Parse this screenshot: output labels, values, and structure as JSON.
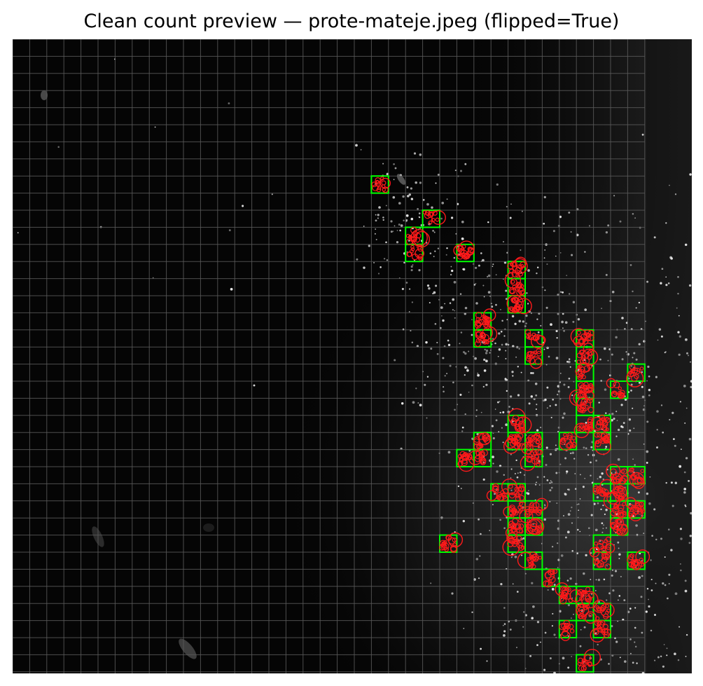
{
  "figure": {
    "title": "Clean count preview — prote-mateje.jpeg (flipped=True)",
    "colors": {
      "grid_line": "#5a5a5a",
      "cell_highlight": "#00ff00",
      "detection_circle": "#ff1a1a",
      "speckle": "#e8e8e8",
      "background": "#000000"
    },
    "grid": {
      "columns": 37,
      "rows": 37
    },
    "highlighted_cells": [
      [
        21,
        8
      ],
      [
        24,
        10
      ],
      [
        23,
        11
      ],
      [
        23,
        12
      ],
      [
        26,
        12
      ],
      [
        29,
        13
      ],
      [
        29,
        14
      ],
      [
        29,
        15
      ],
      [
        27,
        16
      ],
      [
        27,
        17
      ],
      [
        30,
        17
      ],
      [
        30,
        18
      ],
      [
        33,
        17
      ],
      [
        33,
        18
      ],
      [
        33,
        19
      ],
      [
        33,
        20
      ],
      [
        36,
        19
      ],
      [
        35,
        20
      ],
      [
        33,
        21
      ],
      [
        33,
        22
      ],
      [
        34,
        22
      ],
      [
        29,
        22
      ],
      [
        29,
        23
      ],
      [
        30,
        23
      ],
      [
        32,
        23
      ],
      [
        27,
        23
      ],
      [
        26,
        24
      ],
      [
        27,
        24
      ],
      [
        30,
        24
      ],
      [
        34,
        23
      ],
      [
        35,
        25
      ],
      [
        36,
        25
      ],
      [
        28,
        26
      ],
      [
        29,
        26
      ],
      [
        29,
        27
      ],
      [
        30,
        27
      ],
      [
        34,
        26
      ],
      [
        35,
        26
      ],
      [
        35,
        27
      ],
      [
        36,
        27
      ],
      [
        29,
        28
      ],
      [
        30,
        28
      ],
      [
        29,
        29
      ],
      [
        35,
        28
      ],
      [
        25,
        29
      ],
      [
        30,
        30
      ],
      [
        34,
        29
      ],
      [
        34,
        30
      ],
      [
        36,
        30
      ],
      [
        31,
        31
      ],
      [
        32,
        32
      ],
      [
        33,
        32
      ],
      [
        33,
        33
      ],
      [
        34,
        33
      ],
      [
        32,
        34
      ],
      [
        34,
        34
      ],
      [
        33,
        36
      ]
    ]
  }
}
